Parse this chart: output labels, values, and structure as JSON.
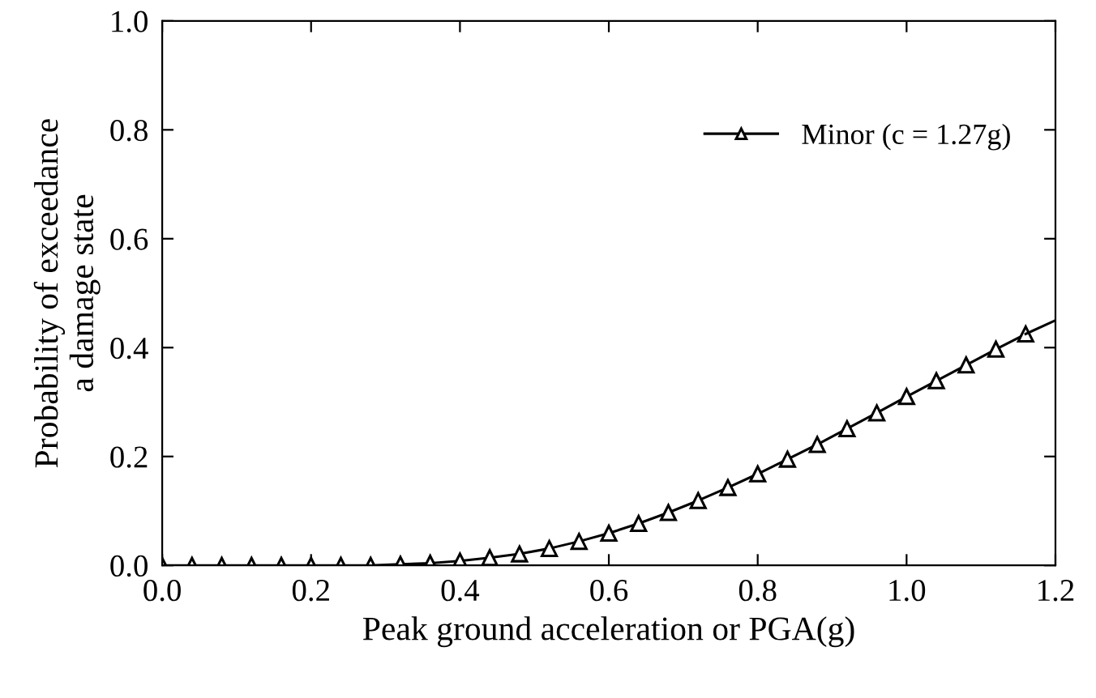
{
  "chart_data": {
    "type": "line",
    "xlabel": "Peak ground acceleration or PGA(g)",
    "ylabel": "Probability of exceedance\na damage state",
    "xlim": [
      0,
      1.2
    ],
    "ylim": [
      0,
      1
    ],
    "xticks": [
      {
        "value": 0,
        "label": "0.0"
      },
      0.2,
      0.4,
      0.6,
      0.8,
      {
        "value": 1,
        "label": "1.0"
      },
      1.2
    ],
    "yticks": [
      {
        "value": 0,
        "label": "0.0"
      },
      0.2,
      0.4,
      0.6,
      0.8,
      {
        "value": 1,
        "label": "1.0"
      }
    ],
    "grid": false,
    "legend": "top right",
    "line_style": "solid",
    "series": [
      {
        "name": "Minor (c = 1.27g)",
        "color": "#000000",
        "marker": "triangle",
        "x": [
          0,
          0.04,
          0.08,
          0.12,
          0.16,
          0.2,
          0.24,
          0.28,
          0.32,
          0.36,
          0.4,
          0.44,
          0.48,
          0.52,
          0.56,
          0.6,
          0.64,
          0.68,
          0.72,
          0.76,
          0.8,
          0.84,
          0.88,
          0.92,
          0.96,
          1.0,
          1.04,
          1.08,
          1.12,
          1.16
        ],
        "values": [
          0,
          0,
          0,
          0,
          0,
          0,
          0,
          0,
          0.002,
          0.004,
          0.008,
          0.014,
          0.021,
          0.031,
          0.044,
          0.059,
          0.077,
          0.097,
          0.119,
          0.143,
          0.168,
          0.195,
          0.222,
          0.251,
          0.28,
          0.31,
          0.339,
          0.368,
          0.397,
          0.425
        ]
      },
      {
        "color": "#000000",
        "marker": "none",
        "x": [
          1.16,
          1.2
        ],
        "values": [
          0.425,
          0.45
        ]
      }
    ]
  }
}
